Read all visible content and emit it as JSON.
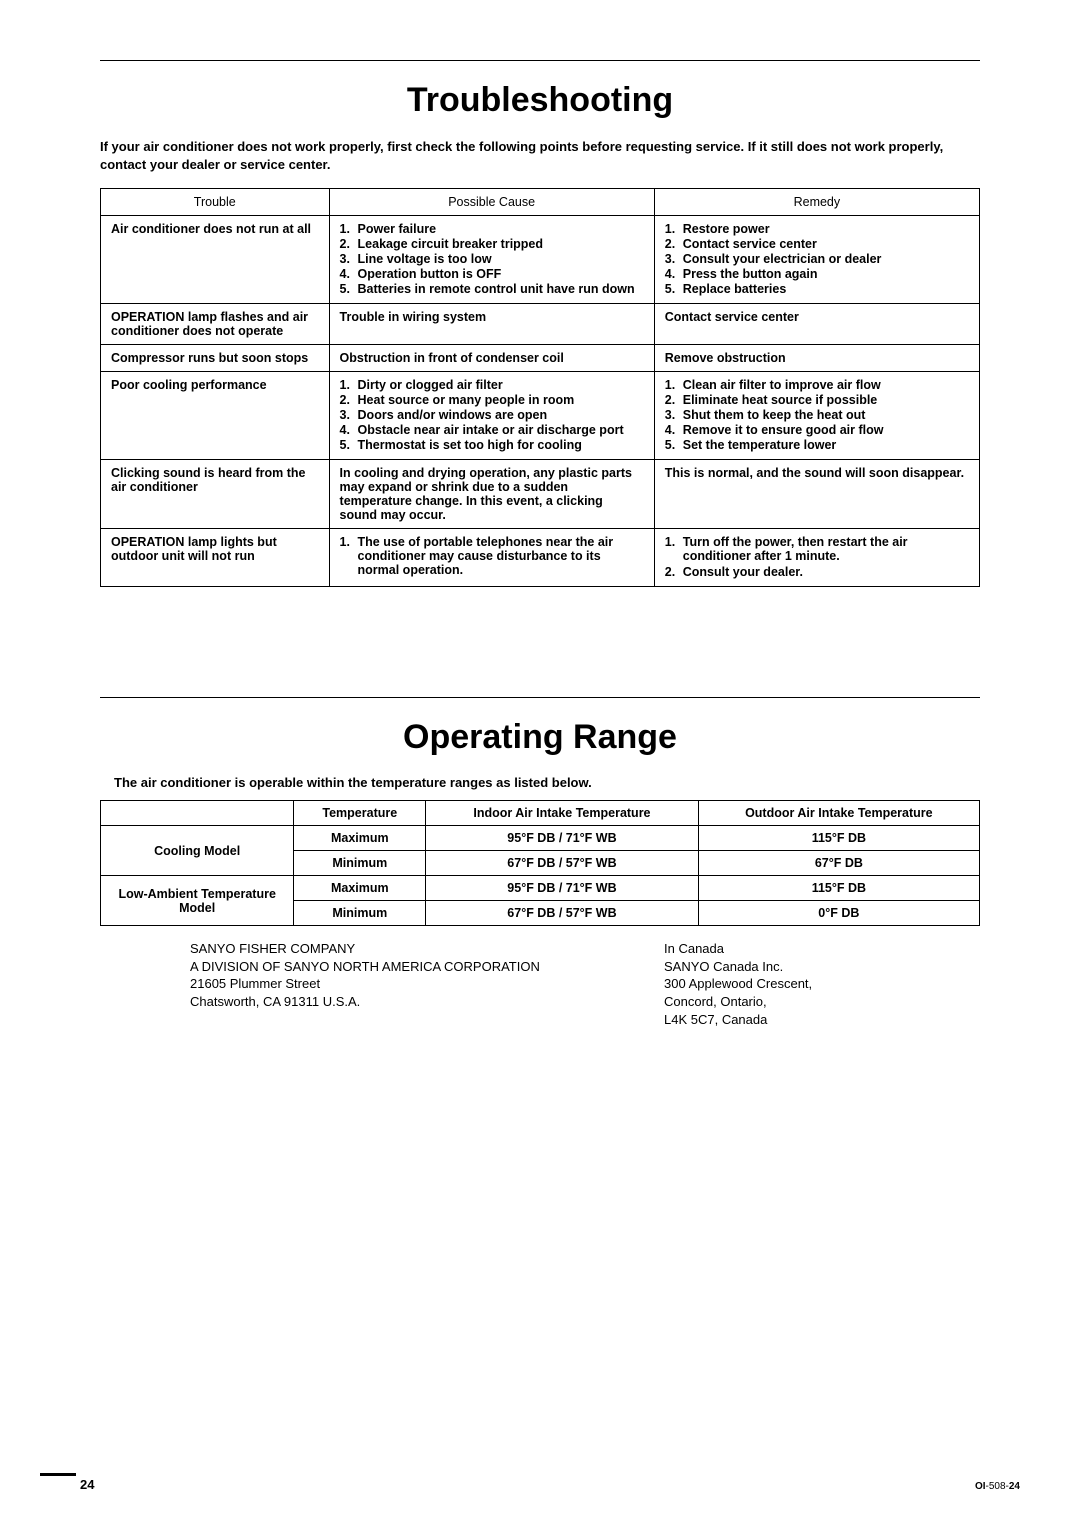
{
  "section1": {
    "title": "Troubleshooting",
    "intro": "If your air conditioner does not work properly, first check the following points before requesting service. If it still does not work properly, contact your dealer or service center.",
    "headers": [
      "Trouble",
      "Possible Cause",
      "Remedy"
    ],
    "rows": [
      {
        "trouble": "Air conditioner does not run at all",
        "cause": [
          {
            "n": "1.",
            "t": "Power failure"
          },
          {
            "n": "2.",
            "t": "Leakage circuit breaker tripped"
          },
          {
            "n": "3.",
            "t": "Line voltage is too low"
          },
          {
            "n": "4.",
            "t": "Operation button is OFF"
          },
          {
            "n": "5.",
            "t": "Batteries in remote control unit have run down"
          }
        ],
        "remedy": [
          {
            "n": "1.",
            "t": "Restore power"
          },
          {
            "n": "2.",
            "t": "Contact service center"
          },
          {
            "n": "3.",
            "t": "Consult your electrician or dealer"
          },
          {
            "n": "4.",
            "t": "Press the button again"
          },
          {
            "n": "5.",
            "t": "Replace batteries"
          }
        ]
      },
      {
        "trouble": "OPERATION lamp flashes and air conditioner does not operate",
        "cause_plain": "Trouble in wiring system",
        "remedy_plain": "Contact service center"
      },
      {
        "trouble": "Compressor runs but soon stops",
        "cause_plain": "Obstruction in front of condenser coil",
        "remedy_plain": "Remove obstruction"
      },
      {
        "trouble": "Poor cooling performance",
        "cause": [
          {
            "n": "1.",
            "t": "Dirty or clogged air filter"
          },
          {
            "n": "2.",
            "t": "Heat source or many people in room"
          },
          {
            "n": "3.",
            "t": "Doors and/or windows are open"
          },
          {
            "n": "4.",
            "t": "Obstacle near air intake or air discharge port"
          },
          {
            "n": "5.",
            "t": "Thermostat is set too high for cooling"
          }
        ],
        "remedy": [
          {
            "n": "1.",
            "t": "Clean air filter to improve air flow"
          },
          {
            "n": "2.",
            "t": "Eliminate heat source if possible"
          },
          {
            "n": "3.",
            "t": "Shut them to keep the heat out"
          },
          {
            "n": "4.",
            "t": "Remove it to ensure good air flow"
          },
          {
            "n": "5.",
            "t": "Set the temperature lower"
          }
        ]
      },
      {
        "trouble": "Clicking sound is heard from the air conditioner",
        "cause_plain": "In cooling and drying operation, any plastic parts may expand or shrink due to a sudden temperature change. In this event, a clicking sound may occur.",
        "remedy_plain": "This is normal, and the sound will soon disappear."
      },
      {
        "trouble": "OPERATION lamp lights but outdoor unit will not run",
        "cause": [
          {
            "n": "1.",
            "t": "The use of portable telephones near the air conditioner may cause disturbance to its normal operation."
          }
        ],
        "remedy": [
          {
            "n": "1.",
            "t": "Turn off the power, then restart the air conditioner after 1 minute."
          },
          {
            "n": "",
            "t": ""
          },
          {
            "n": "2.",
            "t": "Consult your dealer."
          }
        ]
      }
    ]
  },
  "section2": {
    "title": "Operating Range",
    "intro": "The air conditioner is operable within the temperature ranges as listed below.",
    "headers": [
      "",
      "Temperature",
      "Indoor Air Intake Temperature",
      "Outdoor Air Intake Temperature"
    ],
    "rows": [
      {
        "model": "Cooling Model",
        "temp": "Maximum",
        "indoor": "95°F DB / 71°F WB",
        "outdoor": "115°F DB"
      },
      {
        "model": "",
        "temp": "Minimum",
        "indoor": "67°F DB / 57°F WB",
        "outdoor": "67°F DB"
      },
      {
        "model": "Low-Ambient Temperature Model",
        "temp": "Maximum",
        "indoor": "95°F DB / 71°F WB",
        "outdoor": "115°F DB"
      },
      {
        "model": "",
        "temp": "Minimum",
        "indoor": "67°F DB / 57°F WB",
        "outdoor": "0°F DB"
      }
    ]
  },
  "footer": {
    "left": [
      "SANYO FISHER COMPANY",
      "A DIVISION OF SANYO NORTH AMERICA CORPORATION",
      "21605 Plummer Street",
      "Chatsworth, CA 91311 U.S.A."
    ],
    "right_head": "In Canada",
    "right": [
      "SANYO Canada Inc.",
      "300 Applewood Crescent,",
      "Concord, Ontario,",
      "L4K 5C7, Canada"
    ]
  },
  "page": "24",
  "doc_code": "OI-508-24"
}
